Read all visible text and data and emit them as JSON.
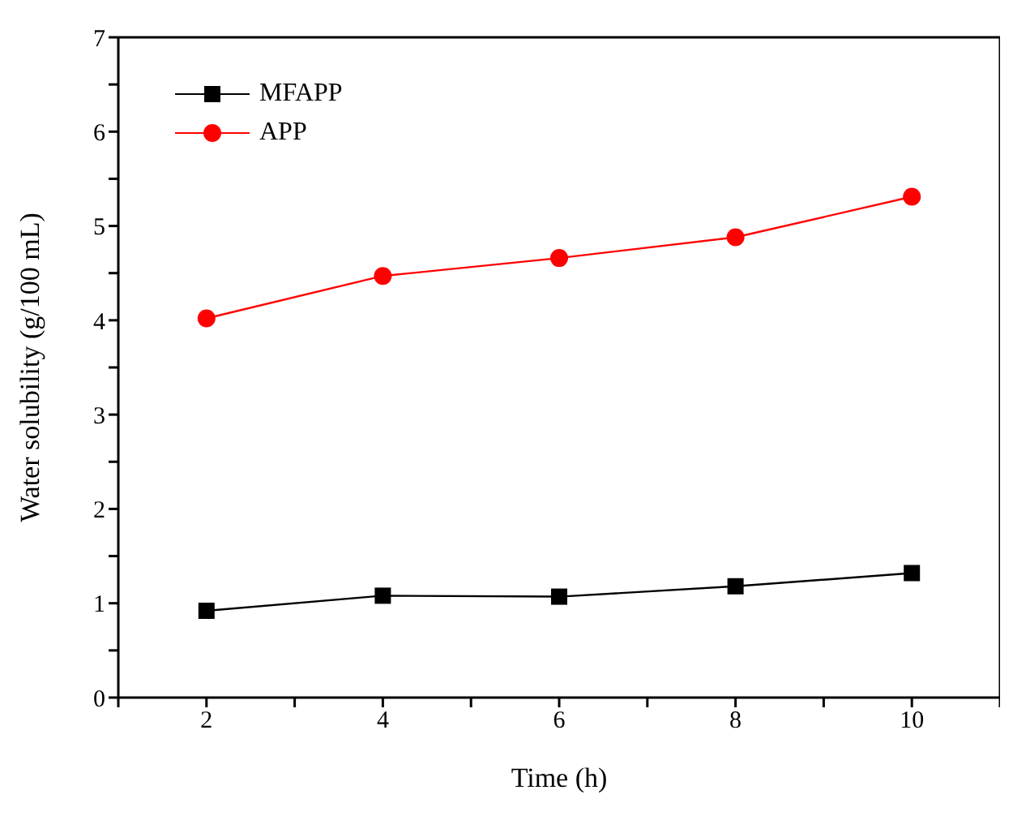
{
  "chart_data": {
    "type": "line",
    "xlabel": "Time (h)",
    "ylabel": "Water solubility (g/100 mL)",
    "x": [
      2,
      4,
      6,
      8,
      10
    ],
    "series": [
      {
        "name": "MFAPP",
        "color": "#000000",
        "marker": "square",
        "values": [
          0.92,
          1.08,
          1.07,
          1.18,
          1.32
        ]
      },
      {
        "name": "APP",
        "color": "#ff0000",
        "marker": "circle",
        "values": [
          4.02,
          4.47,
          4.66,
          4.88,
          5.31
        ]
      }
    ],
    "xlim": [
      1,
      11
    ],
    "xticks": [
      {
        "value": 1,
        "label": null
      },
      2,
      {
        "value": 3,
        "label": null
      },
      4,
      {
        "value": 5,
        "label": null
      },
      6,
      {
        "value": 7,
        "label": null
      },
      8,
      {
        "value": 9,
        "label": null
      },
      10,
      {
        "value": 11,
        "label": null
      }
    ],
    "ylim": [
      0,
      7
    ],
    "yticks": [
      0,
      {
        "value": 0.5,
        "label": null
      },
      1,
      {
        "value": 1.5,
        "label": null
      },
      2,
      {
        "value": 2.5,
        "label": null
      },
      3,
      {
        "value": 3.5,
        "label": null
      },
      4,
      {
        "value": 4.5,
        "label": null
      },
      5,
      {
        "value": 5.5,
        "label": null
      },
      6,
      {
        "value": 6.5,
        "label": null
      },
      7
    ],
    "grid": false,
    "legend": "top left",
    "line_style": "solid"
  }
}
